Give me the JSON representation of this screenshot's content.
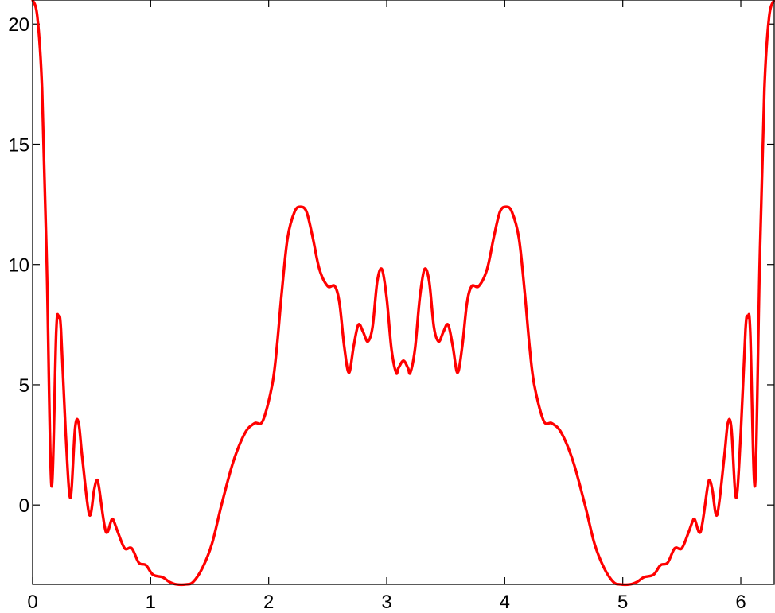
{
  "chart_data": {
    "type": "line",
    "title": "",
    "xlabel": "",
    "ylabel": "",
    "xlim": [
      0,
      6.283
    ],
    "ylim": [
      -3.3,
      21
    ],
    "xticks": [
      0,
      1,
      2,
      3,
      4,
      5,
      6
    ],
    "xtick_labels": [
      "0",
      "1",
      "2",
      "3",
      "4",
      "5",
      "6"
    ],
    "yticks": [
      0,
      5,
      10,
      15,
      20
    ],
    "ytick_labels": [
      "0",
      "5",
      "10",
      "15",
      "20"
    ],
    "grid": false,
    "legend": "none",
    "colors": {
      "series": "#ff0000",
      "axes": "#000000",
      "background": "#ffffff"
    },
    "series": [
      {
        "x": [
          0,
          0.04,
          0.08,
          0.12,
          0.16,
          0.2,
          0.22,
          0.24,
          0.28,
          0.32,
          0.36,
          0.39,
          0.42,
          0.48,
          0.52,
          0.54,
          0.56,
          0.62,
          0.67,
          0.69,
          0.72,
          0.78,
          0.84,
          0.9,
          0.96,
          1.02,
          1.1,
          1.16,
          1.22,
          1.3,
          1.36,
          1.44,
          1.52,
          1.6,
          1.7,
          1.8,
          1.88,
          1.95,
          2.03,
          2.07,
          2.11,
          2.16,
          2.22,
          2.27,
          2.32,
          2.37,
          2.43,
          2.5,
          2.56,
          2.6,
          2.64,
          2.68,
          2.72,
          2.76,
          2.8,
          2.84,
          2.88,
          2.92,
          2.96,
          3.0,
          3.04,
          3.08,
          3.1,
          3.142,
          3.18,
          3.2,
          3.24,
          3.28,
          3.32,
          3.36,
          3.4,
          3.44,
          3.48,
          3.52,
          3.56,
          3.6,
          3.64,
          3.68,
          3.72,
          3.78,
          3.85,
          3.91,
          3.96,
          4.01,
          4.06,
          4.12,
          4.17,
          4.21,
          4.25,
          4.33,
          4.4,
          4.48,
          4.58,
          4.68,
          4.76,
          4.84,
          4.92,
          4.98,
          5.06,
          5.12,
          5.18,
          5.26,
          5.32,
          5.38,
          5.44,
          5.5,
          5.56,
          5.59,
          5.61,
          5.66,
          5.72,
          5.74,
          5.76,
          5.8,
          5.86,
          5.89,
          5.92,
          5.96,
          6.0,
          6.04,
          6.06,
          6.08,
          6.12,
          6.16,
          6.2,
          6.24,
          6.283
        ],
        "y": [
          21,
          20.3,
          17.3,
          10,
          0.8,
          7.2,
          7.8,
          7.3,
          3,
          0.3,
          3.2,
          3.4,
          2,
          -0.4,
          0.6,
          1,
          0.8,
          -1.1,
          -0.6,
          -0.7,
          -1.1,
          -1.8,
          -1.8,
          -2.4,
          -2.5,
          -2.9,
          -3.0,
          -3.2,
          -3.3,
          -3.3,
          -3.2,
          -2.6,
          -1.6,
          0,
          1.8,
          3.0,
          3.4,
          3.5,
          5.0,
          6.6,
          8.8,
          11.1,
          12.2,
          12.4,
          12.2,
          11.2,
          9.8,
          9.1,
          9.1,
          8.4,
          6.6,
          5.5,
          6.6,
          7.5,
          7.2,
          6.8,
          7.4,
          9.3,
          9.8,
          8.6,
          6.5,
          5.5,
          5.7,
          6.0,
          5.7,
          5.5,
          6.5,
          8.6,
          9.8,
          9.3,
          7.4,
          6.8,
          7.2,
          7.5,
          6.6,
          5.5,
          6.6,
          8.4,
          9.1,
          9.1,
          9.8,
          11.2,
          12.2,
          12.4,
          12.2,
          11.1,
          8.8,
          6.6,
          5.0,
          3.5,
          3.4,
          3.0,
          1.8,
          0,
          -1.6,
          -2.6,
          -3.2,
          -3.3,
          -3.3,
          -3.2,
          -3.0,
          -2.9,
          -2.5,
          -2.4,
          -1.8,
          -1.8,
          -1.1,
          -0.7,
          -0.6,
          -1.1,
          0.8,
          1,
          0.6,
          -0.4,
          2,
          3.4,
          3.2,
          0.3,
          3,
          7.3,
          7.8,
          7.2,
          0.8,
          10,
          17.3,
          20.3,
          21
        ]
      }
    ]
  }
}
